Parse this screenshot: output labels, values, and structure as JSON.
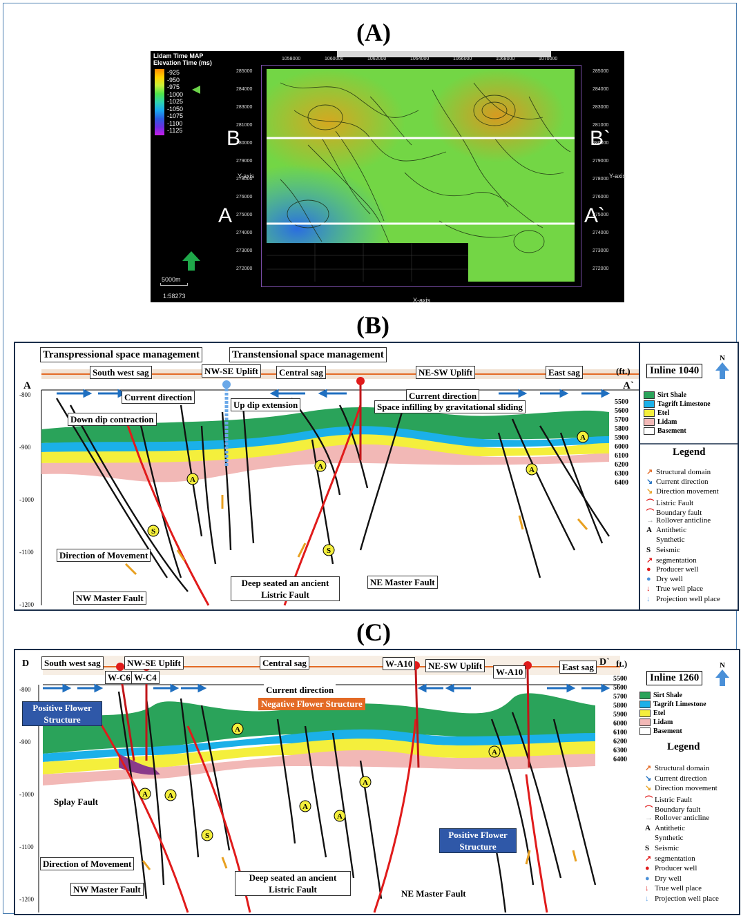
{
  "panels": {
    "a": "(A)",
    "b": "(B)",
    "c": "(C)"
  },
  "map": {
    "title": "Lidam Time MAP",
    "subtitle": "Elevation Time (ms)",
    "colorbar": [
      "-925",
      "-950",
      "-975",
      "-1000",
      "-1025",
      "-1050",
      "-1075",
      "-1100",
      "-1125"
    ],
    "x_ticks": [
      "1058000",
      "1060000",
      "1062000",
      "1064000",
      "1066000",
      "1068000",
      "1070000"
    ],
    "y_ticks": [
      "285000",
      "284000",
      "283000",
      "281000",
      "280000",
      "279000",
      "278000",
      "276000",
      "275000",
      "274000",
      "273000",
      "272000"
    ],
    "x_axis": "X-axis",
    "y_axis": "Y-axis",
    "scale_bar": "5000m",
    "scale": "1:58273",
    "profile_labels": {
      "a": "A",
      "a2": "A`",
      "b": "B",
      "b2": "B`"
    }
  },
  "section_b": {
    "headers": [
      "Transpressional space management",
      "Transtensional space management"
    ],
    "domains": [
      "South west sag",
      "NW-SE Uplift",
      "Central sag",
      "NE-SW Uplift",
      "East sag"
    ],
    "ends": {
      "left": "A",
      "right": "A`"
    },
    "unit": "(ft.)",
    "inline": "Inline 1040",
    "north": "N",
    "annotations": [
      "Current direction",
      "Current direction",
      "Up dip extension",
      "Space infilling by gravitational sliding",
      "Down dip contraction",
      "Direction of Movement",
      "NW Master Fault",
      "Deep seated an ancient Listric Fault",
      "NE Master Fault"
    ],
    "y_ticks": [
      "-800",
      "-900",
      "-1000",
      "-1100",
      "-1200"
    ],
    "depth_scale": [
      "5500",
      "5600",
      "5700",
      "5800",
      "5900",
      "6000",
      "6100",
      "6200",
      "6300",
      "6400"
    ],
    "layers": [
      "Sirt Shale",
      "Tagrift Limestone",
      "Etel",
      "Lidam",
      "Basement"
    ],
    "legend_title": "Legend",
    "legend": [
      "Structural domain",
      "Current direction",
      "Direction movement",
      "Listric Fault",
      "Boundary fault",
      "Rollover anticline",
      "Antithetic",
      "Synthetic",
      "Seismic",
      "segmentation",
      "Producer well",
      "Dry well",
      "True well place",
      "Projection well place"
    ]
  },
  "section_c": {
    "domains": [
      "South west sag",
      "NW-SE Uplift",
      "Central sag",
      "NE-SW Uplift",
      "East sag"
    ],
    "ends": {
      "left": "D",
      "right": "D`"
    },
    "unit": "ft.)",
    "inline": "Inline 1260",
    "north": "N",
    "wells": [
      "W-C6",
      "W-C4",
      "W-A10",
      "W-A10"
    ],
    "annotations": [
      "Current direction",
      "Negative Flower Structure",
      "Positive Flower Structure",
      "Positive Flower Structure",
      "Splay Fault",
      "Direction of Movement",
      "NW Master Fault",
      "Deep seated an ancient Listric Fault",
      "NE Master Fault"
    ],
    "y_ticks": [
      "-800",
      "-900",
      "-1000",
      "-1100",
      "-1200"
    ],
    "depth_scale": [
      "5500",
      "5600",
      "5700",
      "5800",
      "5900",
      "6000",
      "6100",
      "6200",
      "6300",
      "6400"
    ],
    "layers": [
      "Sirt Shale",
      "Tagrift Limestone",
      "Etel",
      "Lidam",
      "Basement"
    ],
    "legend_title": "Legend",
    "legend": [
      "Structural domain",
      "Current direction",
      "Direction movement",
      "Listric Fault",
      "Boundary fault",
      "Rollover anticline",
      "Antithetic",
      "Synthetic",
      "Seismic",
      "segmentation",
      "Producer well",
      "Dry well",
      "True well place",
      "Projection well place"
    ]
  },
  "colors": {
    "sirt_shale": "#2aa35a",
    "tagrift": "#1bb0e8",
    "etel": "#f4ef3c",
    "lidam": "#f2b8b6",
    "basement": "#ffffff",
    "fault_red": "#e01b1b",
    "arrow_blue": "#1f6fc0",
    "arrow_orange": "#e8a020"
  }
}
